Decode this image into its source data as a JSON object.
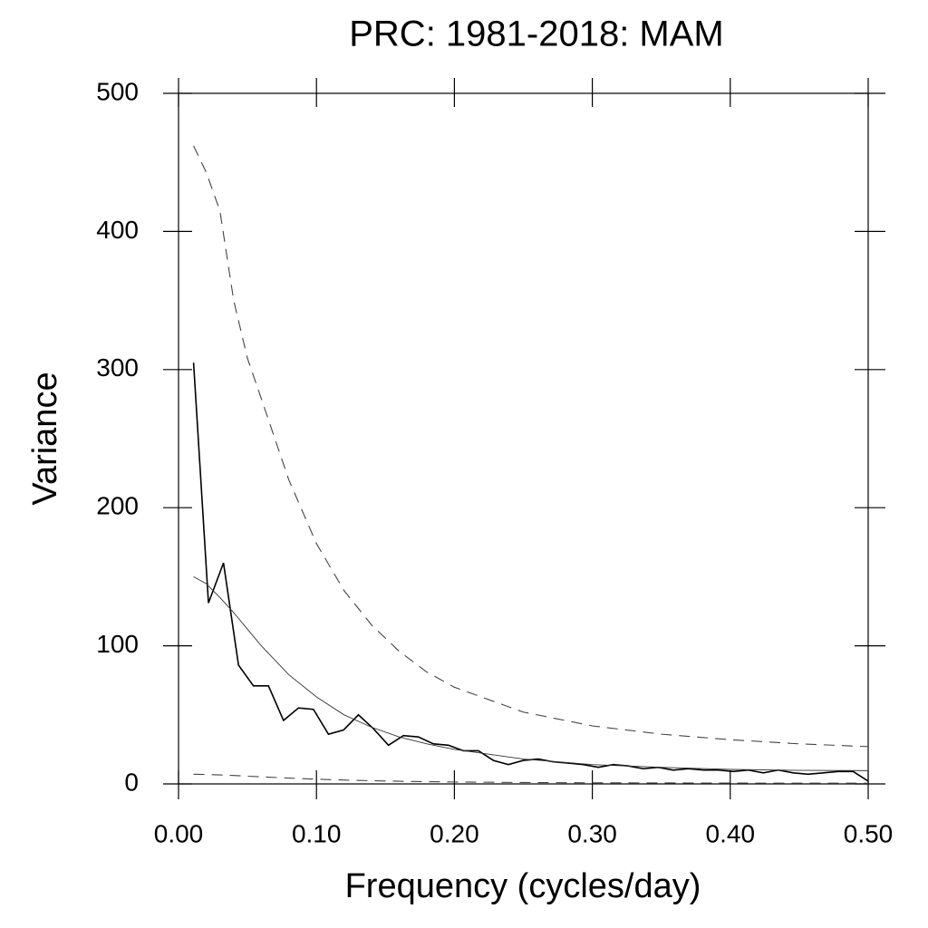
{
  "chart_data": {
    "type": "line",
    "title": "PRC: 1981-2018: MAM",
    "xlabel": "Frequency (cycles/day)",
    "ylabel": "Variance",
    "xlim": [
      0,
      0.5
    ],
    "ylim": [
      0,
      500
    ],
    "xticks": [
      {
        "value": 0,
        "label": "0.00"
      },
      {
        "value": 0.1,
        "label": "0.10"
      },
      {
        "value": 0.2,
        "label": "0.20"
      },
      {
        "value": 0.3,
        "label": "0.30"
      },
      {
        "value": 0.4,
        "label": "0.40"
      },
      {
        "value": 0.5,
        "label": "0.50"
      }
    ],
    "yticks": [
      0,
      100,
      200,
      300,
      400,
      500
    ],
    "series": [
      {
        "color": "#000000",
        "line_style": "solid",
        "x": [
          0.0109,
          0.0217,
          0.0326,
          0.0435,
          0.0543,
          0.0652,
          0.0761,
          0.087,
          0.0978,
          0.1087,
          0.1196,
          0.1304,
          0.1413,
          0.1522,
          0.163,
          0.1739,
          0.1848,
          0.1957,
          0.2065,
          0.2174,
          0.2283,
          0.2391,
          0.25,
          0.2609,
          0.2717,
          0.2826,
          0.2935,
          0.3043,
          0.3152,
          0.3261,
          0.337,
          0.3478,
          0.3587,
          0.3696,
          0.3804,
          0.3913,
          0.4022,
          0.413,
          0.4239,
          0.4348,
          0.4457,
          0.4565,
          0.4674,
          0.4783,
          0.4891,
          0.5
        ],
        "values": [
          305,
          131,
          160,
          86,
          71,
          71,
          46,
          55,
          54,
          36,
          39,
          50,
          40,
          28,
          35,
          34,
          29,
          28,
          24,
          24,
          17,
          14,
          17,
          18,
          16,
          15,
          14,
          12,
          14,
          13,
          11,
          12,
          10,
          11,
          10,
          10,
          9,
          10,
          8,
          10,
          8,
          7,
          8,
          9,
          9,
          2
        ]
      },
      {
        "color": "#333333",
        "line_style": "thin",
        "x": [
          0.0109,
          0.02,
          0.03,
          0.04,
          0.05,
          0.06,
          0.08,
          0.1,
          0.12,
          0.14,
          0.16,
          0.18,
          0.2,
          0.25,
          0.3,
          0.35,
          0.4,
          0.45,
          0.5
        ],
        "values": [
          150,
          145,
          135,
          124,
          112,
          100,
          79,
          63,
          50,
          41,
          34,
          29,
          25,
          18,
          14,
          12,
          10.5,
          9.8,
          9.6
        ]
      },
      {
        "color": "#444444",
        "line_style": "dashed",
        "x": [
          0.0109,
          0.02,
          0.03,
          0.04,
          0.05,
          0.06,
          0.08,
          0.1,
          0.12,
          0.14,
          0.16,
          0.18,
          0.2,
          0.25,
          0.3,
          0.35,
          0.4,
          0.45,
          0.5
        ],
        "values": [
          462,
          443,
          415,
          350,
          308,
          279,
          220,
          174,
          140,
          115,
          96,
          81,
          70,
          52,
          42,
          36,
          32,
          29,
          27
        ]
      },
      {
        "color": "#444444",
        "line_style": "dashed",
        "x": [
          0.0109,
          0.02,
          0.03,
          0.04,
          0.05,
          0.06,
          0.08,
          0.1,
          0.12,
          0.14,
          0.16,
          0.18,
          0.2,
          0.25,
          0.3,
          0.35,
          0.4,
          0.45,
          0.5
        ],
        "values": [
          7,
          6.8,
          6.5,
          6.1,
          5.6,
          5.1,
          4.2,
          3.4,
          2.8,
          2.3,
          1.9,
          1.6,
          1.4,
          1.0,
          0.8,
          0.7,
          0.6,
          0.55,
          0.5
        ]
      }
    ]
  }
}
